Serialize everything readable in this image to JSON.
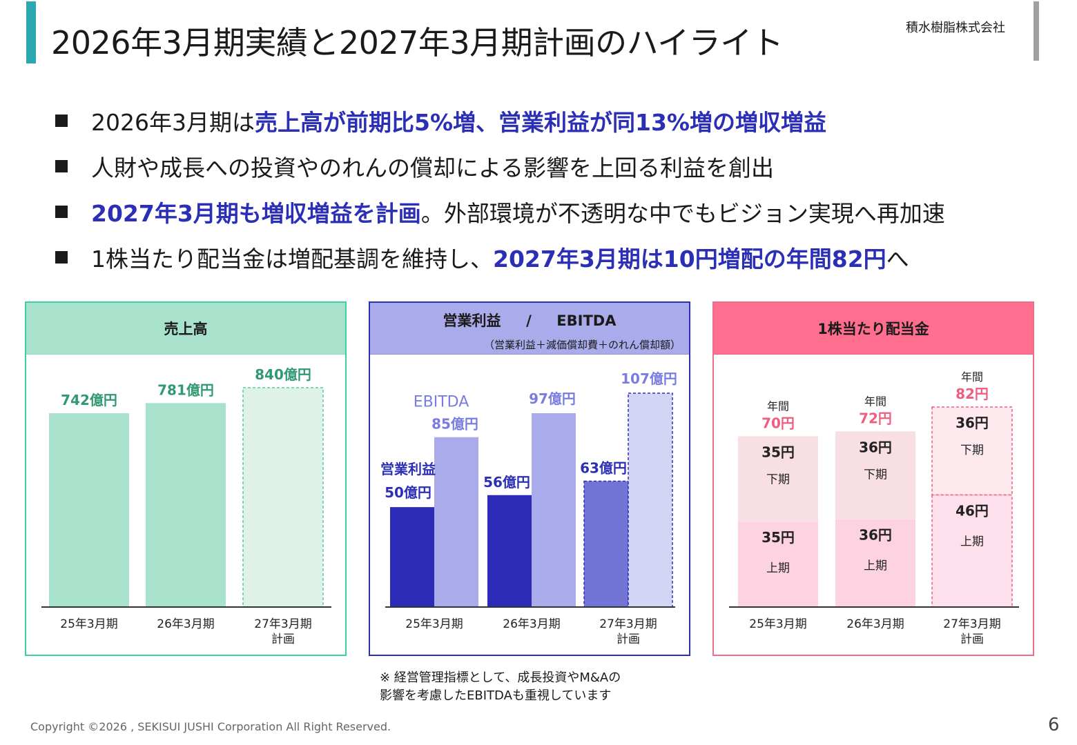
{
  "header": {
    "title": "2026年3月期実績と2027年3月期計画のハイライト",
    "company": "積水樹脂株式会社"
  },
  "bullets": [
    {
      "pre": "2026年3月期は",
      "hl": "売上高が前期比5%増、営業利益が同13%増の増収増益",
      "post": ""
    },
    {
      "pre": "人財や成長への投資やのれんの償却による影響を上回る利益を創出",
      "hl": "",
      "post": ""
    },
    {
      "pre": "",
      "hl": "2027年3月期も増収増益を計画",
      "post": "。外部環境が不透明な中でもビジョン実現へ再加速"
    },
    {
      "pre": "1株当たり配当金は増配基調を維持し、",
      "hl": "2027年3月期は10円増配の年間82円",
      "post": "へ"
    }
  ],
  "panels": {
    "sales": {
      "title": "売上高"
    },
    "profit": {
      "title_left": "営業利益",
      "separator": "/",
      "title_right": "EBITDA",
      "subtitle": "（営業利益＋減価償却費＋のれん償却額）"
    },
    "dividend": {
      "title": "1株当たり配当金"
    }
  },
  "note": {
    "line1": "※ 経営管理指標として、成長投資やM&Aの",
    "line2": "影響を考慮したEBITDAも重視しています"
  },
  "footer": {
    "copyright": "Copyright ©2026 , SEKISUI JUSHI Corporation  All Right Reserved.",
    "page": "6"
  },
  "chart_data": [
    {
      "type": "bar",
      "title": "売上高",
      "categories": [
        "25年3月期",
        "26年3月期",
        "27年3月期"
      ],
      "category_sublabels": [
        "",
        "",
        "計画"
      ],
      "values": [
        742,
        781,
        840
      ],
      "labels": [
        "742億円",
        "781億円",
        "840億円"
      ],
      "planned": [
        false,
        false,
        true
      ],
      "colors": {
        "actual": "#a8e2cc",
        "plan": "#dff2ea",
        "label": "#2f9a72"
      }
    },
    {
      "type": "bar",
      "title": "営業利益 / EBITDA",
      "categories": [
        "25年3月期",
        "26年3月期",
        "27年3月期"
      ],
      "category_sublabels": [
        "",
        "",
        "計画"
      ],
      "series": [
        {
          "name": "営業利益",
          "values": [
            50,
            56,
            63
          ],
          "labels": [
            "50億円",
            "56億円",
            "63億円"
          ],
          "colors": [
            "#2b2bb8",
            "#2b2bb8",
            "#7375d6"
          ]
        },
        {
          "name": "EBITDA",
          "values": [
            85,
            97,
            107
          ],
          "labels": [
            "85億円",
            "97億円",
            "107億円"
          ],
          "colors": [
            "#a9abea",
            "#a9abea",
            "#d4d5f5"
          ]
        }
      ],
      "planned": [
        false,
        false,
        true
      ],
      "colors": {
        "op_label": "#2b2fb5",
        "ebitda_label": "#7a7de0"
      }
    },
    {
      "type": "bar",
      "title": "1株当たり配当金",
      "categories": [
        "25年3月期",
        "26年3月期",
        "27年3月期"
      ],
      "category_sublabels": [
        "",
        "",
        "計画"
      ],
      "stacked": true,
      "series": [
        {
          "name": "上期",
          "values": [
            35,
            36,
            46
          ],
          "labels": [
            "35円",
            "36円",
            "46円"
          ]
        },
        {
          "name": "下期",
          "values": [
            35,
            36,
            36
          ],
          "labels": [
            "35円",
            "36円",
            "36円"
          ]
        }
      ],
      "totals": [
        70,
        72,
        82
      ],
      "total_prefix": "年間",
      "total_labels": [
        "70円",
        "72円",
        "82円"
      ],
      "planned": [
        false,
        false,
        true
      ],
      "colors": {
        "first_half": "#fdd3e1",
        "second_half": "#f8dfe4",
        "plan_first": "#fde0ec",
        "plan_second": "#feeaee",
        "total": "#ef5d80"
      }
    }
  ]
}
